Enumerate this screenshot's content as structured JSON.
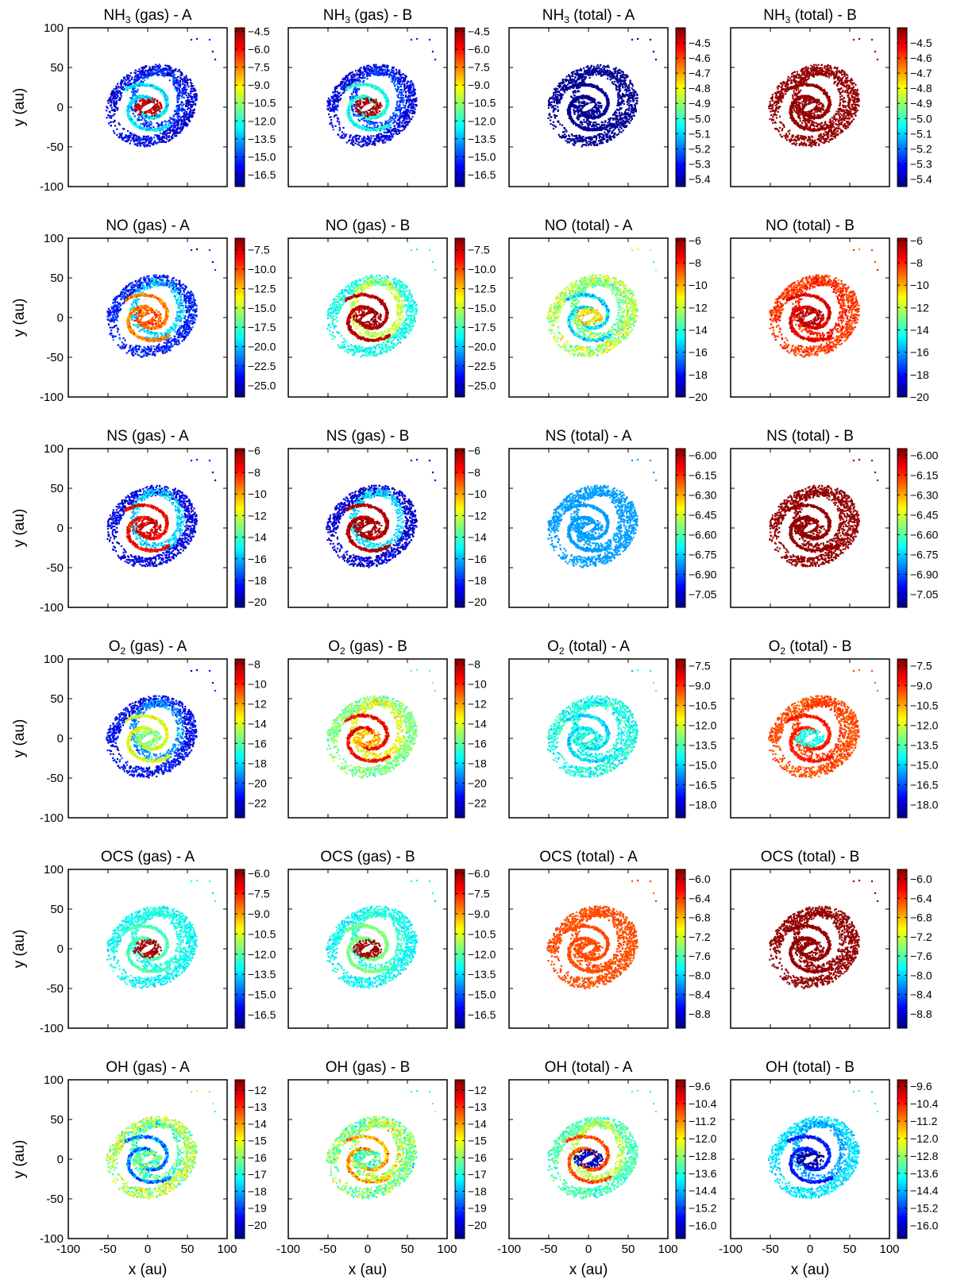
{
  "figure": {
    "xlabel": "x (au)",
    "ylabel": "y (au)",
    "axis_ticks": [
      "-100",
      "-50",
      "0",
      "50",
      "100"
    ],
    "colormap": [
      "#00007f",
      "#0000ff",
      "#007fff",
      "#00ffff",
      "#7fff7f",
      "#ffff00",
      "#ff7f00",
      "#ff0000",
      "#7f0000"
    ]
  },
  "chart_data": [
    {
      "type": "scatter",
      "species": "NH",
      "sub": "3",
      "phase": "(gas)",
      "model": "A",
      "title": "NH3 (gas) - A",
      "xlabel": "x (au)",
      "ylabel": "y (au)",
      "xlim": [
        -100,
        100
      ],
      "ylim": [
        -100,
        100
      ],
      "cbar_range": [
        -17.5,
        -4.2
      ],
      "cbar_ticks": [
        "-4.5",
        "-6.0",
        "-7.5",
        "-9.0",
        "-10.5",
        "-12.0",
        "-13.5",
        "-15.0",
        "-16.5"
      ],
      "pattern": {
        "outer": 0.1,
        "arm": 0.35,
        "core": 0.95,
        "spread": 0.15
      }
    },
    {
      "type": "scatter",
      "species": "NH",
      "sub": "3",
      "phase": "(gas)",
      "model": "B",
      "title": "NH3 (gas) - B",
      "xlabel": "x (au)",
      "ylabel": "y (au)",
      "xlim": [
        -100,
        100
      ],
      "ylim": [
        -100,
        100
      ],
      "cbar_range": [
        -17.5,
        -4.2
      ],
      "cbar_ticks": [
        "-4.5",
        "-6.0",
        "-7.5",
        "-9.0",
        "-10.5",
        "-12.0",
        "-13.5",
        "-15.0",
        "-16.5"
      ],
      "pattern": {
        "outer": 0.1,
        "arm": 0.4,
        "core": 0.97,
        "spread": 0.15
      }
    },
    {
      "type": "scatter",
      "species": "NH",
      "sub": "3",
      "phase": "(total)",
      "model": "A",
      "title": "NH3 (total) - A",
      "xlabel": "x (au)",
      "ylabel": "y (au)",
      "xlim": [
        -100,
        100
      ],
      "ylim": [
        -100,
        100
      ],
      "cbar_range": [
        -5.45,
        -4.4
      ],
      "cbar_ticks": [
        "-4.5",
        "-4.6",
        "-4.7",
        "-4.8",
        "-4.9",
        "-5.0",
        "-5.1",
        "-5.2",
        "-5.3",
        "-5.4"
      ],
      "pattern": {
        "outer": 0.02,
        "arm": 0.02,
        "core": 0.02,
        "spread": 0.02
      }
    },
    {
      "type": "scatter",
      "species": "NH",
      "sub": "3",
      "phase": "(total)",
      "model": "B",
      "title": "NH3 (total) - B",
      "xlabel": "x (au)",
      "ylabel": "y (au)",
      "xlim": [
        -100,
        100
      ],
      "ylim": [
        -100,
        100
      ],
      "cbar_range": [
        -5.45,
        -4.4
      ],
      "cbar_ticks": [
        "-4.5",
        "-4.6",
        "-4.7",
        "-4.8",
        "-4.9",
        "-5.0",
        "-5.1",
        "-5.2",
        "-5.3",
        "-5.4"
      ],
      "pattern": {
        "outer": 0.98,
        "arm": 0.98,
        "core": 0.98,
        "spread": 0.02
      }
    },
    {
      "type": "scatter",
      "species": "NO",
      "sub": "",
      "phase": "(gas)",
      "model": "A",
      "title": "NO (gas) - A",
      "xlabel": "x (au)",
      "ylabel": "y (au)",
      "xlim": [
        -100,
        100
      ],
      "ylim": [
        -100,
        100
      ],
      "cbar_range": [
        -26.5,
        -6.0
      ],
      "cbar_ticks": [
        "-7.5",
        "-10.0",
        "-12.5",
        "-15.0",
        "-17.5",
        "-20.0",
        "-22.5",
        "-25.0"
      ],
      "pattern": {
        "outer": 0.15,
        "arm": 0.75,
        "core": 0.8,
        "spread": 0.15
      }
    },
    {
      "type": "scatter",
      "species": "NO",
      "sub": "",
      "phase": "(gas)",
      "model": "B",
      "title": "NO (gas) - B",
      "xlabel": "x (au)",
      "ylabel": "y (au)",
      "xlim": [
        -100,
        100
      ],
      "ylim": [
        -100,
        100
      ],
      "cbar_range": [
        -26.5,
        -6.0
      ],
      "cbar_ticks": [
        "-7.5",
        "-10.0",
        "-12.5",
        "-15.0",
        "-17.5",
        "-20.0",
        "-22.5",
        "-25.0"
      ],
      "pattern": {
        "outer": 0.4,
        "arm": 0.95,
        "core": 0.97,
        "spread": 0.12
      }
    },
    {
      "type": "scatter",
      "species": "NO",
      "sub": "",
      "phase": "(total)",
      "model": "A",
      "title": "NO (total) - A",
      "xlabel": "x (au)",
      "ylabel": "y (au)",
      "xlim": [
        -100,
        100
      ],
      "ylim": [
        -100,
        100
      ],
      "cbar_range": [
        -20,
        -5.8
      ],
      "cbar_ticks": [
        "-6",
        "-8",
        "-10",
        "-12",
        "-14",
        "-16",
        "-18",
        "-20"
      ],
      "pattern": {
        "outer": 0.55,
        "arm": 0.35,
        "core": 0.65,
        "spread": 0.22
      }
    },
    {
      "type": "scatter",
      "species": "NO",
      "sub": "",
      "phase": "(total)",
      "model": "B",
      "title": "NO (total) - B",
      "xlabel": "x (au)",
      "ylabel": "y (au)",
      "xlim": [
        -100,
        100
      ],
      "ylim": [
        -100,
        100
      ],
      "cbar_range": [
        -20,
        -5.8
      ],
      "cbar_ticks": [
        "-6",
        "-8",
        "-10",
        "-12",
        "-14",
        "-16",
        "-18",
        "-20"
      ],
      "pattern": {
        "outer": 0.82,
        "arm": 0.9,
        "core": 0.95,
        "spread": 0.1
      }
    },
    {
      "type": "scatter",
      "species": "NS",
      "sub": "",
      "phase": "(gas)",
      "model": "A",
      "title": "NS (gas) - A",
      "xlabel": "x (au)",
      "ylabel": "y (au)",
      "xlim": [
        -100,
        100
      ],
      "ylim": [
        -100,
        100
      ],
      "cbar_range": [
        -20.5,
        -5.8
      ],
      "cbar_ticks": [
        "-6",
        "-8",
        "-10",
        "-12",
        "-14",
        "-16",
        "-18",
        "-20"
      ],
      "pattern": {
        "outer": 0.1,
        "arm": 0.88,
        "core": 0.92,
        "spread": 0.12
      }
    },
    {
      "type": "scatter",
      "species": "NS",
      "sub": "",
      "phase": "(gas)",
      "model": "B",
      "title": "NS (gas) - B",
      "xlabel": "x (au)",
      "ylabel": "y (au)",
      "xlim": [
        -100,
        100
      ],
      "ylim": [
        -100,
        100
      ],
      "cbar_range": [
        -20.5,
        -5.8
      ],
      "cbar_ticks": [
        "-6",
        "-8",
        "-10",
        "-12",
        "-14",
        "-16",
        "-18",
        "-20"
      ],
      "pattern": {
        "outer": 0.08,
        "arm": 0.95,
        "core": 0.97,
        "spread": 0.1
      }
    },
    {
      "type": "scatter",
      "species": "NS",
      "sub": "",
      "phase": "(total)",
      "model": "A",
      "title": "NS (total) - A",
      "xlabel": "x (au)",
      "ylabel": "y (au)",
      "xlim": [
        -100,
        100
      ],
      "ylim": [
        -100,
        100
      ],
      "cbar_range": [
        -7.15,
        -5.95
      ],
      "cbar_ticks": [
        "-6.00",
        "-6.15",
        "-6.30",
        "-6.45",
        "-6.60",
        "-6.75",
        "-6.90",
        "-7.05"
      ],
      "pattern": {
        "outer": 0.28,
        "arm": 0.28,
        "core": 0.28,
        "spread": 0.03
      }
    },
    {
      "type": "scatter",
      "species": "NS",
      "sub": "",
      "phase": "(total)",
      "model": "B",
      "title": "NS (total) - B",
      "xlabel": "x (au)",
      "ylabel": "y (au)",
      "xlim": [
        -100,
        100
      ],
      "ylim": [
        -100,
        100
      ],
      "cbar_range": [
        -7.15,
        -5.95
      ],
      "cbar_ticks": [
        "-6.00",
        "-6.15",
        "-6.30",
        "-6.45",
        "-6.60",
        "-6.75",
        "-6.90",
        "-7.05"
      ],
      "pattern": {
        "outer": 0.98,
        "arm": 0.98,
        "core": 0.98,
        "spread": 0.02
      }
    },
    {
      "type": "scatter",
      "species": "O",
      "sub": "2",
      "phase": "(gas)",
      "model": "A",
      "title": "O2 (gas) - A",
      "xlabel": "x (au)",
      "ylabel": "y (au)",
      "xlim": [
        -100,
        100
      ],
      "ylim": [
        -100,
        100
      ],
      "cbar_range": [
        -23.5,
        -7.5
      ],
      "cbar_ticks": [
        "-8",
        "-10",
        "-12",
        "-14",
        "-16",
        "-18",
        "-20",
        "-22"
      ],
      "pattern": {
        "outer": 0.12,
        "arm": 0.6,
        "core": 0.5,
        "spread": 0.15
      }
    },
    {
      "type": "scatter",
      "species": "O",
      "sub": "2",
      "phase": "(gas)",
      "model": "B",
      "title": "O2 (gas) - B",
      "xlabel": "x (au)",
      "ylabel": "y (au)",
      "xlim": [
        -100,
        100
      ],
      "ylim": [
        -100,
        100
      ],
      "cbar_range": [
        -23.5,
        -7.5
      ],
      "cbar_ticks": [
        "-8",
        "-10",
        "-12",
        "-14",
        "-16",
        "-18",
        "-20",
        "-22"
      ],
      "pattern": {
        "outer": 0.5,
        "arm": 0.88,
        "core": 0.7,
        "spread": 0.15
      }
    },
    {
      "type": "scatter",
      "species": "O",
      "sub": "2",
      "phase": "(total)",
      "model": "A",
      "title": "O2 (total) - A",
      "xlabel": "x (au)",
      "ylabel": "y (au)",
      "xlim": [
        -100,
        100
      ],
      "ylim": [
        -100,
        100
      ],
      "cbar_range": [
        -19,
        -7.0
      ],
      "cbar_ticks": [
        "-7.5",
        "-9.0",
        "-10.5",
        "-12.0",
        "-13.5",
        "-15.0",
        "-16.5",
        "-18.0"
      ],
      "pattern": {
        "outer": 0.4,
        "arm": 0.35,
        "core": 0.4,
        "spread": 0.15
      }
    },
    {
      "type": "scatter",
      "species": "O",
      "sub": "2",
      "phase": "(total)",
      "model": "B",
      "title": "O2 (total) - B",
      "xlabel": "x (au)",
      "ylabel": "y (au)",
      "xlim": [
        -100,
        100
      ],
      "ylim": [
        -100,
        100
      ],
      "cbar_range": [
        -19,
        -7.0
      ],
      "cbar_ticks": [
        "-7.5",
        "-9.0",
        "-10.5",
        "-12.0",
        "-13.5",
        "-15.0",
        "-16.5",
        "-18.0"
      ],
      "pattern": {
        "outer": 0.8,
        "arm": 0.85,
        "core": 0.4,
        "spread": 0.08
      }
    },
    {
      "type": "scatter",
      "species": "OCS",
      "sub": "",
      "phase": "(gas)",
      "model": "A",
      "title": "OCS (gas) - A",
      "xlabel": "x (au)",
      "ylabel": "y (au)",
      "xlim": [
        -100,
        100
      ],
      "ylim": [
        -100,
        100
      ],
      "cbar_range": [
        -17.5,
        -5.7
      ],
      "cbar_ticks": [
        "-6.0",
        "-7.5",
        "-9.0",
        "-10.5",
        "-12.0",
        "-13.5",
        "-15.0",
        "-16.5"
      ],
      "pattern": {
        "outer": 0.38,
        "arm": 0.45,
        "core": 0.96,
        "spread": 0.1
      }
    },
    {
      "type": "scatter",
      "species": "OCS",
      "sub": "",
      "phase": "(gas)",
      "model": "B",
      "title": "OCS (gas) - B",
      "xlabel": "x (au)",
      "ylabel": "y (au)",
      "xlim": [
        -100,
        100
      ],
      "ylim": [
        -100,
        100
      ],
      "cbar_range": [
        -17.5,
        -5.7
      ],
      "cbar_ticks": [
        "-6.0",
        "-7.5",
        "-9.0",
        "-10.5",
        "-12.0",
        "-13.5",
        "-15.0",
        "-16.5"
      ],
      "pattern": {
        "outer": 0.38,
        "arm": 0.5,
        "core": 0.97,
        "spread": 0.1
      }
    },
    {
      "type": "scatter",
      "species": "OCS",
      "sub": "",
      "phase": "(total)",
      "model": "A",
      "title": "OCS (total) - A",
      "xlabel": "x (au)",
      "ylabel": "y (au)",
      "xlim": [
        -100,
        100
      ],
      "ylim": [
        -100,
        100
      ],
      "cbar_range": [
        -9.1,
        -5.8
      ],
      "cbar_ticks": [
        "-6.0",
        "-6.4",
        "-6.8",
        "-7.2",
        "-7.6",
        "-8.0",
        "-8.4",
        "-8.8"
      ],
      "pattern": {
        "outer": 0.8,
        "arm": 0.8,
        "core": 0.8,
        "spread": 0.05
      }
    },
    {
      "type": "scatter",
      "species": "OCS",
      "sub": "",
      "phase": "(total)",
      "model": "B",
      "title": "OCS (total) - B",
      "xlabel": "x (au)",
      "ylabel": "y (au)",
      "xlim": [
        -100,
        100
      ],
      "ylim": [
        -100,
        100
      ],
      "cbar_range": [
        -9.1,
        -5.8
      ],
      "cbar_ticks": [
        "-6.0",
        "-6.4",
        "-6.8",
        "-7.2",
        "-7.6",
        "-8.0",
        "-8.4",
        "-8.8"
      ],
      "pattern": {
        "outer": 0.98,
        "arm": 0.98,
        "core": 0.98,
        "spread": 0.02
      }
    },
    {
      "type": "scatter",
      "species": "OH",
      "sub": "",
      "phase": "(gas)",
      "model": "A",
      "title": "OH (gas) - A",
      "xlabel": "x (au)",
      "ylabel": "y (au)",
      "xlim": [
        -100,
        100
      ],
      "ylim": [
        -100,
        100
      ],
      "cbar_range": [
        -20.8,
        -11.4
      ],
      "cbar_ticks": [
        "-12",
        "-13",
        "-14",
        "-15",
        "-16",
        "-17",
        "-18",
        "-19",
        "-20"
      ],
      "pattern": {
        "outer": 0.55,
        "arm": 0.25,
        "core": 0.45,
        "spread": 0.25
      }
    },
    {
      "type": "scatter",
      "species": "OH",
      "sub": "",
      "phase": "(gas)",
      "model": "B",
      "title": "OH (gas) - B",
      "xlabel": "x (au)",
      "ylabel": "y (au)",
      "xlim": [
        -100,
        100
      ],
      "ylim": [
        -100,
        100
      ],
      "cbar_range": [
        -20.8,
        -11.4
      ],
      "cbar_ticks": [
        "-12",
        "-13",
        "-14",
        "-15",
        "-16",
        "-17",
        "-18",
        "-19",
        "-20"
      ],
      "pattern": {
        "outer": 0.5,
        "arm": 0.7,
        "core": 0.45,
        "spread": 0.25
      }
    },
    {
      "type": "scatter",
      "species": "OH",
      "sub": "",
      "phase": "(total)",
      "model": "A",
      "title": "OH (total) - A",
      "xlabel": "x (au)",
      "ylabel": "y (au)",
      "xlim": [
        -100,
        100
      ],
      "ylim": [
        -100,
        100
      ],
      "cbar_range": [
        -16.6,
        -9.3
      ],
      "cbar_ticks": [
        "-9.6",
        "-10.4",
        "-11.2",
        "-12.0",
        "-12.8",
        "-13.6",
        "-14.4",
        "-15.2",
        "-16.0"
      ],
      "pattern": {
        "outer": 0.45,
        "arm": 0.8,
        "core": 0.05,
        "spread": 0.15
      }
    },
    {
      "type": "scatter",
      "species": "OH",
      "sub": "",
      "phase": "(total)",
      "model": "B",
      "title": "OH (total) - B",
      "xlabel": "x (au)",
      "ylabel": "y (au)",
      "xlim": [
        -100,
        100
      ],
      "ylim": [
        -100,
        100
      ],
      "cbar_range": [
        -16.6,
        -9.3
      ],
      "cbar_ticks": [
        "-9.6",
        "-10.4",
        "-11.2",
        "-12.0",
        "-12.8",
        "-13.6",
        "-14.4",
        "-15.2",
        "-16.0"
      ],
      "pattern": {
        "outer": 0.35,
        "arm": 0.15,
        "core": 0.03,
        "spread": 0.1
      }
    }
  ]
}
